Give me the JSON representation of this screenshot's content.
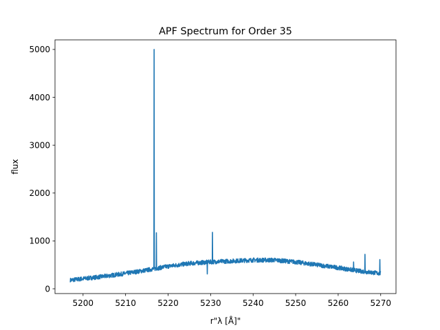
{
  "chart_data": {
    "type": "line",
    "title": "APF Spectrum for Order 35",
    "xlabel": "r\"λ [Å]\"",
    "ylabel": "flux",
    "xlim": [
      5193.4,
      5273.6
    ],
    "ylim": [
      -100,
      5200
    ],
    "xticks": [
      5200,
      5210,
      5220,
      5230,
      5240,
      5250,
      5260,
      5270
    ],
    "yticks": [
      0,
      1000,
      2000,
      3000,
      4000,
      5000
    ],
    "xtick_labels": [
      "5200",
      "5210",
      "5220",
      "5230",
      "5240",
      "5250",
      "5260",
      "5270"
    ],
    "ytick_labels": [
      "0",
      "1000",
      "2000",
      "3000",
      "4000",
      "5000"
    ],
    "grid": false,
    "series": [
      {
        "name": "flux",
        "color": "#1f77b4",
        "x_range": [
          5197.0,
          5270.0
        ],
        "continuum": [
          [
            5197.0,
            180
          ],
          [
            5200.0,
            210
          ],
          [
            5205.0,
            260
          ],
          [
            5210.0,
            320
          ],
          [
            5215.0,
            390
          ],
          [
            5220.0,
            470
          ],
          [
            5225.0,
            530
          ],
          [
            5230.0,
            560
          ],
          [
            5235.0,
            580
          ],
          [
            5240.0,
            600
          ],
          [
            5245.0,
            600
          ],
          [
            5250.0,
            560
          ],
          [
            5255.0,
            500
          ],
          [
            5260.0,
            440
          ],
          [
            5265.0,
            370
          ],
          [
            5270.0,
            320
          ]
        ],
        "spikes": [
          [
            5216.7,
            5000
          ],
          [
            5217.2,
            1170
          ],
          [
            5230.4,
            1180
          ],
          [
            5266.3,
            720
          ],
          [
            5269.8,
            610
          ],
          [
            5263.6,
            560
          ]
        ],
        "dips": [
          [
            5229.2,
            310
          ]
        ]
      }
    ]
  }
}
